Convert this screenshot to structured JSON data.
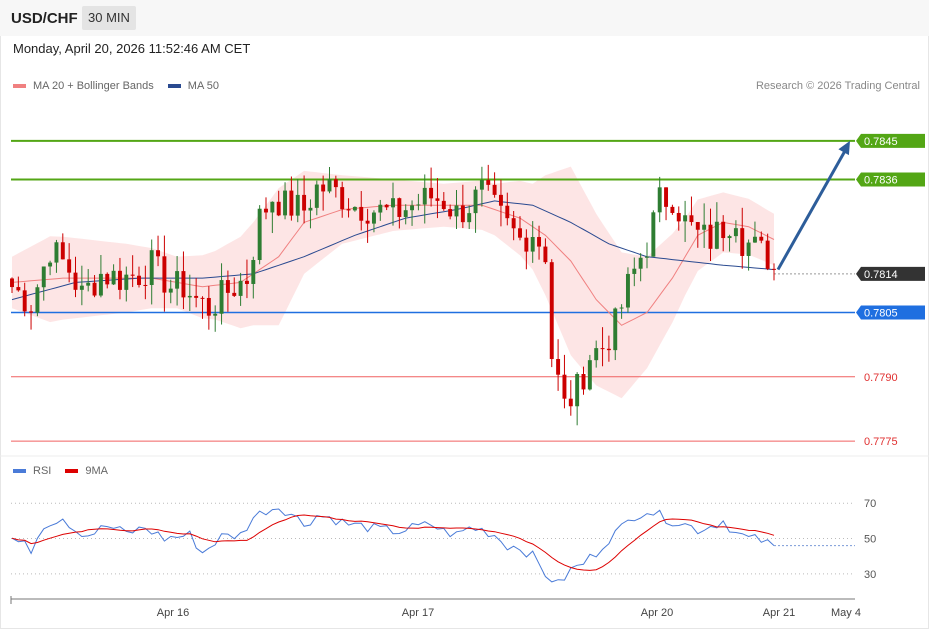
{
  "header": {
    "symbol": "USD/CHF",
    "timeframe": "30 MIN"
  },
  "datetime": "Monday, April 20, 2026 11:52:46 AM CET",
  "credit": "Research © 2026 Trading Central",
  "colors": {
    "bullish": "#2e7d32",
    "bearish": "#cc0000",
    "bollinger_fill": "#fde0e0",
    "ma20": "#f08080",
    "ma50": "#2a4a90",
    "resistance": "#53a615",
    "pivot": "#1f6fe0",
    "support": "#f06060",
    "arrow": "#2d5d9a",
    "rsi": "#4a7bd8",
    "rsi_ma": "#dd0000",
    "last_price": "#333333"
  },
  "legend": {
    "price": [
      {
        "label": "MA 20 + Bollinger Bands",
        "color": "#f08080"
      },
      {
        "label": "MA 50",
        "color": "#2a4a90"
      }
    ],
    "rsi": [
      {
        "label": "RSI",
        "color": "#4a7bd8"
      },
      {
        "label": "9MA",
        "color": "#dd0000"
      }
    ]
  },
  "chart_data": {
    "type": "candlestick",
    "price_range": [
      0.7772,
      0.7855
    ],
    "levels": [
      {
        "value": "0.7845",
        "kind": "resistance"
      },
      {
        "value": "0.7836",
        "kind": "resistance"
      },
      {
        "value": "0.7814",
        "kind": "last-price"
      },
      {
        "value": "0.7805",
        "kind": "pivot"
      },
      {
        "value": "0.7790",
        "kind": "support"
      },
      {
        "value": "0.7775",
        "kind": "support"
      }
    ],
    "projection": {
      "from": 0.7815,
      "to": 0.7845
    },
    "x_labels": [
      "Apr 16",
      "Apr 17",
      "Apr 20",
      "Apr 21",
      "May 4"
    ],
    "rsi_ticks": [
      "70",
      "50",
      "30"
    ],
    "rsi_range": [
      18,
      82
    ],
    "price_waypoints": [
      [
        0,
        0.7811
      ],
      [
        3,
        0.7807
      ],
      [
        6,
        0.782
      ],
      [
        9,
        0.7815
      ],
      [
        11,
        0.7809
      ],
      [
        14,
        0.7814
      ],
      [
        17,
        0.7813
      ],
      [
        20,
        0.7814
      ],
      [
        22,
        0.7816
      ],
      [
        25,
        0.7811
      ],
      [
        27,
        0.7811
      ],
      [
        29,
        0.7808
      ],
      [
        31,
        0.7806
      ],
      [
        34,
        0.781
      ],
      [
        37,
        0.7813
      ],
      [
        39,
        0.7827
      ],
      [
        41,
        0.7832
      ],
      [
        43,
        0.783
      ],
      [
        46,
        0.7829
      ],
      [
        48,
        0.7834
      ],
      [
        50,
        0.7834
      ],
      [
        52,
        0.7832
      ],
      [
        54,
        0.783
      ],
      [
        57,
        0.7829
      ],
      [
        60,
        0.7828
      ],
      [
        63,
        0.783
      ],
      [
        66,
        0.7832
      ],
      [
        68,
        0.7831
      ],
      [
        70,
        0.7828
      ],
      [
        72,
        0.783
      ],
      [
        74,
        0.7833
      ],
      [
        76,
        0.7829
      ],
      [
        78,
        0.7825
      ],
      [
        80,
        0.7822
      ],
      [
        82,
        0.7824
      ],
      [
        84,
        0.7819
      ],
      [
        85,
        0.7795
      ],
      [
        87,
        0.7783
      ],
      [
        89,
        0.7787
      ],
      [
        91,
        0.7795
      ],
      [
        93,
        0.7797
      ],
      [
        95,
        0.7802
      ],
      [
        97,
        0.7811
      ],
      [
        99,
        0.7818
      ],
      [
        100,
        0.7821
      ],
      [
        102,
        0.7831
      ],
      [
        104,
        0.7832
      ],
      [
        106,
        0.7826
      ],
      [
        108,
        0.7823
      ],
      [
        110,
        0.7822
      ],
      [
        112,
        0.7825
      ],
      [
        114,
        0.7828
      ],
      [
        115,
        0.7822
      ],
      [
        117,
        0.782
      ],
      [
        119,
        0.7818
      ],
      [
        120,
        0.7815
      ]
    ],
    "ma20_waypoints": [
      [
        0,
        0.7812
      ],
      [
        8,
        0.7813
      ],
      [
        14,
        0.7813
      ],
      [
        22,
        0.7813
      ],
      [
        30,
        0.7811
      ],
      [
        36,
        0.7812
      ],
      [
        42,
        0.7818
      ],
      [
        46,
        0.7826
      ],
      [
        52,
        0.7829
      ],
      [
        60,
        0.783
      ],
      [
        68,
        0.783
      ],
      [
        74,
        0.783
      ],
      [
        80,
        0.7827
      ],
      [
        84,
        0.7823
      ],
      [
        88,
        0.7817
      ],
      [
        92,
        0.7808
      ],
      [
        96,
        0.7802
      ],
      [
        100,
        0.7805
      ],
      [
        104,
        0.7813
      ],
      [
        108,
        0.7823
      ],
      [
        112,
        0.7826
      ],
      [
        116,
        0.7825
      ],
      [
        120,
        0.7822
      ]
    ],
    "ma50_waypoints": [
      [
        0,
        0.7808
      ],
      [
        10,
        0.7812
      ],
      [
        20,
        0.7813
      ],
      [
        30,
        0.7813
      ],
      [
        38,
        0.7814
      ],
      [
        46,
        0.7818
      ],
      [
        54,
        0.7823
      ],
      [
        62,
        0.7827
      ],
      [
        70,
        0.7829
      ],
      [
        76,
        0.7831
      ],
      [
        82,
        0.783
      ],
      [
        88,
        0.7826
      ],
      [
        94,
        0.7821
      ],
      [
        100,
        0.7818
      ],
      [
        106,
        0.7817
      ],
      [
        112,
        0.7816
      ],
      [
        120,
        0.7815
      ]
    ],
    "bb_width_waypoints": [
      [
        0,
        0.0006
      ],
      [
        6,
        0.001
      ],
      [
        12,
        0.0009
      ],
      [
        18,
        0.0008
      ],
      [
        26,
        0.0006
      ],
      [
        32,
        0.0008
      ],
      [
        38,
        0.0012
      ],
      [
        42,
        0.0016
      ],
      [
        46,
        0.0012
      ],
      [
        52,
        0.0008
      ],
      [
        60,
        0.0006
      ],
      [
        68,
        0.0005
      ],
      [
        76,
        0.0006
      ],
      [
        82,
        0.001
      ],
      [
        88,
        0.0022
      ],
      [
        92,
        0.002
      ],
      [
        96,
        0.0017
      ],
      [
        100,
        0.0013
      ],
      [
        106,
        0.0009
      ],
      [
        112,
        0.0007
      ],
      [
        120,
        0.0006
      ]
    ],
    "rsi_waypoints": [
      [
        0,
        50
      ],
      [
        3,
        44
      ],
      [
        5,
        58
      ],
      [
        8,
        62
      ],
      [
        10,
        55
      ],
      [
        12,
        52
      ],
      [
        15,
        57
      ],
      [
        18,
        53
      ],
      [
        21,
        56
      ],
      [
        24,
        50
      ],
      [
        28,
        52
      ],
      [
        30,
        42
      ],
      [
        33,
        51
      ],
      [
        36,
        52
      ],
      [
        38,
        62
      ],
      [
        40,
        66
      ],
      [
        42,
        68
      ],
      [
        44,
        64
      ],
      [
        46,
        58
      ],
      [
        48,
        63
      ],
      [
        50,
        62
      ],
      [
        53,
        58
      ],
      [
        55,
        57
      ],
      [
        58,
        55
      ],
      [
        61,
        54
      ],
      [
        63,
        56
      ],
      [
        66,
        58
      ],
      [
        68,
        54
      ],
      [
        70,
        52
      ],
      [
        72,
        56
      ],
      [
        74,
        55
      ],
      [
        76,
        52
      ],
      [
        78,
        46
      ],
      [
        80,
        45
      ],
      [
        82,
        40
      ],
      [
        84,
        30
      ],
      [
        86,
        24
      ],
      [
        88,
        32
      ],
      [
        90,
        36
      ],
      [
        92,
        42
      ],
      [
        94,
        50
      ],
      [
        96,
        56
      ],
      [
        98,
        63
      ],
      [
        100,
        66
      ],
      [
        102,
        63
      ],
      [
        104,
        60
      ],
      [
        106,
        58
      ],
      [
        108,
        55
      ],
      [
        110,
        57
      ],
      [
        112,
        60
      ],
      [
        114,
        53
      ],
      [
        116,
        50
      ],
      [
        118,
        49
      ],
      [
        120,
        45
      ]
    ]
  }
}
